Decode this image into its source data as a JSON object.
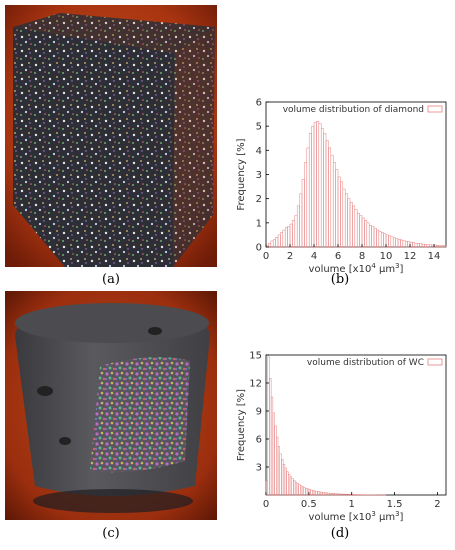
{
  "panels": [
    {
      "id": "a",
      "caption": "(a)",
      "kind": "render",
      "description_colors": {
        "background": "#b33a10",
        "sample": "#2f2f35"
      }
    },
    {
      "id": "b",
      "caption": "(b)"
    },
    {
      "id": "c",
      "caption": "(c)",
      "kind": "render",
      "description_colors": {
        "background": "#b33a10",
        "sample": "#4a4a4e"
      }
    },
    {
      "id": "d",
      "caption": "(d)"
    }
  ],
  "chart_data": [
    {
      "type": "bar",
      "panel": "b",
      "legend": "volume distribution of diamond",
      "legend_position": "top-right",
      "xlabel": "volume [x10",
      "xlabel_exp": "4",
      "xlabel_unit": " µm",
      "xlabel_unit_exp": "3",
      "xlabel_close": "]",
      "ylabel": "Frequency [%]",
      "xlim": [
        0,
        15
      ],
      "ylim": [
        0,
        6
      ],
      "xticks": [
        0,
        2,
        4,
        6,
        8,
        10,
        12,
        14
      ],
      "yticks": [
        0,
        1,
        2,
        3,
        4,
        5,
        6
      ],
      "bin_width": 0.2,
      "bin_start": 0,
      "values": [
        0.05,
        0.15,
        0.25,
        0.3,
        0.4,
        0.5,
        0.6,
        0.7,
        0.8,
        0.85,
        0.95,
        1.1,
        1.3,
        1.7,
        2.2,
        2.8,
        3.5,
        4.1,
        4.7,
        5.0,
        5.15,
        5.2,
        5.1,
        4.9,
        4.7,
        4.4,
        4.1,
        3.8,
        3.5,
        3.2,
        2.9,
        2.7,
        2.4,
        2.2,
        2.0,
        1.85,
        1.7,
        1.55,
        1.4,
        1.3,
        1.2,
        1.1,
        1.0,
        0.9,
        0.85,
        0.78,
        0.7,
        0.65,
        0.6,
        0.55,
        0.5,
        0.46,
        0.42,
        0.38,
        0.35,
        0.32,
        0.29,
        0.26,
        0.24,
        0.22,
        0.2,
        0.18,
        0.16,
        0.15,
        0.14,
        0.12,
        0.11,
        0.1,
        0.09,
        0.08,
        0.08,
        0.07,
        0.06,
        0.06,
        0.05
      ],
      "color": "#e88080"
    },
    {
      "type": "bar",
      "panel": "d",
      "legend": "volume distribution of WC",
      "legend_position": "top-right",
      "xlabel": "volume [x10",
      "xlabel_exp": "3",
      "xlabel_unit": " µm",
      "xlabel_unit_exp": "3",
      "xlabel_close": "]",
      "ylabel": "Frequency [%]",
      "xlim": [
        0,
        2.1
      ],
      "ylim": [
        0,
        15
      ],
      "xticks": [
        0,
        0.5,
        1,
        1.5,
        2
      ],
      "xticklabels": [
        "0",
        "0.5",
        "1",
        "1.5",
        "2"
      ],
      "yticks": [
        3,
        6,
        9,
        12,
        15
      ],
      "bin_width": 0.02,
      "bin_start": 0,
      "values": [
        1.5,
        14.8,
        12.5,
        10.5,
        8.8,
        7.4,
        6.2,
        5.2,
        4.4,
        3.8,
        3.3,
        2.9,
        2.5,
        2.2,
        1.95,
        1.75,
        1.55,
        1.38,
        1.22,
        1.1,
        0.98,
        0.88,
        0.8,
        0.72,
        0.65,
        0.59,
        0.53,
        0.48,
        0.44,
        0.4,
        0.36,
        0.33,
        0.3,
        0.27,
        0.25,
        0.23,
        0.21,
        0.19,
        0.17,
        0.16,
        0.14,
        0.13,
        0.12,
        0.11,
        0.1,
        0.09,
        0.085,
        0.08,
        0.07,
        0.065,
        0.06,
        0.055,
        0.05,
        0.045,
        0.04,
        0.038,
        0.035,
        0.03,
        0.028,
        0.025,
        0.022,
        0.02,
        0.018,
        0.016,
        0.015,
        0.013,
        0.012,
        0.011,
        0.01,
        0.009
      ],
      "color": "#e88080"
    }
  ]
}
